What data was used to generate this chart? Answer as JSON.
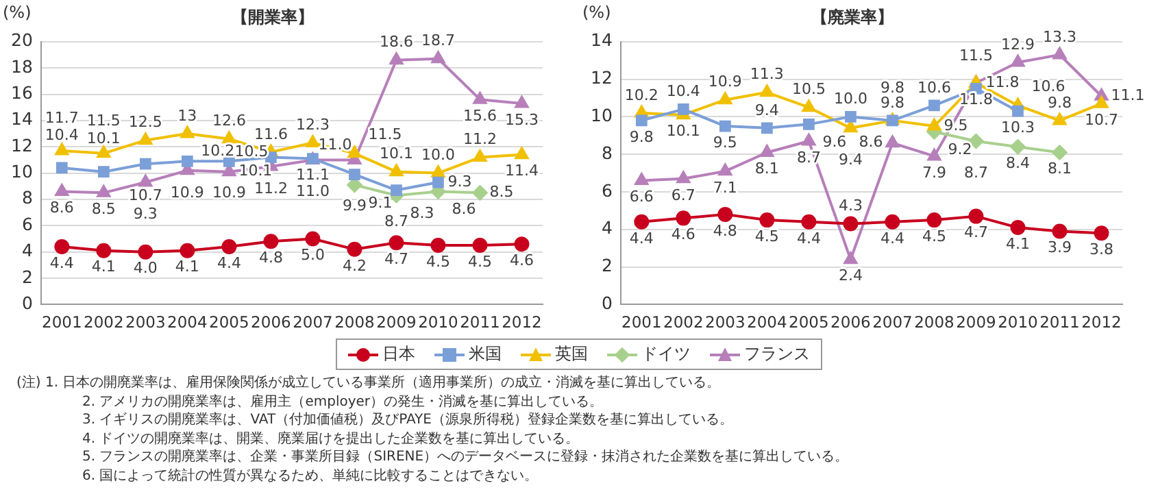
{
  "chart_data": [
    {
      "type": "line",
      "title": "【開業率】",
      "ylabel": "(%)",
      "categories": [
        "2001",
        "2002",
        "2003",
        "2004",
        "2005",
        "2006",
        "2007",
        "2008",
        "2009",
        "2010",
        "2011",
        "2012"
      ],
      "ylim": [
        0,
        20
      ],
      "yticks": [
        0,
        2,
        4,
        6,
        8,
        10,
        12,
        14,
        16,
        18,
        20
      ],
      "grid": "y",
      "legend": "bottom",
      "line_style": "solid",
      "series": [
        {
          "name": "日本",
          "color": "#c8001e",
          "marker": "circle",
          "values": [
            4.4,
            4.1,
            4.0,
            4.1,
            4.4,
            4.8,
            5.0,
            4.2,
            4.7,
            4.5,
            4.5,
            4.6
          ],
          "value_labels": [
            "4.4",
            "4.1",
            "4.0",
            "4.1",
            "4.4",
            "4.8",
            "5.0",
            "4.2",
            "4.7",
            "4.5",
            "4.5",
            "4.6"
          ]
        },
        {
          "name": "米国",
          "color": "#7b9fd8",
          "marker": "square",
          "values": [
            10.4,
            10.1,
            10.7,
            10.9,
            10.9,
            11.2,
            11.1,
            9.9,
            8.7,
            9.3,
            null,
            null
          ],
          "value_labels": [
            "10.4",
            "10.1",
            "10.7",
            "10.9",
            "10.9",
            "11.2",
            "11.1",
            "9.9",
            "8.7",
            "9.3",
            null,
            null
          ]
        },
        {
          "name": "英国",
          "color": "#f0c000",
          "marker": "triangle",
          "values": [
            11.7,
            11.5,
            12.5,
            13,
            12.6,
            11.6,
            12.3,
            11.5,
            10.1,
            10.0,
            11.2,
            11.4
          ],
          "value_labels": [
            "11.7",
            "11.5",
            "12.5",
            "13",
            "12.6",
            "11.6",
            "12.3",
            "11.5",
            "10.1",
            "10.0",
            "11.2",
            "11.4"
          ]
        },
        {
          "name": "ドイツ",
          "color": "#a8d08d",
          "marker": "diamond",
          "values": [
            null,
            null,
            null,
            null,
            null,
            null,
            null,
            9.1,
            8.3,
            8.6,
            8.5,
            null
          ],
          "value_labels": [
            null,
            null,
            null,
            null,
            null,
            null,
            null,
            "9.1",
            "8.3",
            "8.6",
            "8.5",
            null
          ]
        },
        {
          "name": "フランス",
          "color": "#b77fba",
          "marker": "triangle",
          "values": [
            8.6,
            8.5,
            9.3,
            10.2,
            10.1,
            10.5,
            11.0,
            11.0,
            18.6,
            18.7,
            15.6,
            15.3
          ],
          "value_labels": [
            "8.6",
            "8.5",
            "9.3",
            "10.2",
            "10.1",
            "10.5",
            "11.0",
            "11.0",
            "18.6",
            "18.7",
            "15.6",
            "15.3"
          ]
        }
      ],
      "annotations": [
        "(注) 1. 日本の開廃業率は、雇用保険関係が成立している事業所（適用事業所）の成立・消滅を基に算出している。",
        "2. アメリカの開廃業率は、雇用主（employer）の発生・消滅を基に算出している。",
        "3. イギリスの開廃業率は、VAT（付加価値税）及びPAYE（源泉所得税）登録企業数を基に算出している。",
        "4. ドイツの開廃業率は、開業、廃業届けを提出した企業数を基に算出している。",
        "5. フランスの開廃業率は、企業・事業所目録（SIRENE）へのデータベースに登録・抹消された企業数を基に算出している。",
        "6. 国によって統計の性質が異なるため、単純に比較することはできない。"
      ]
    },
    {
      "type": "line",
      "title": "【廃業率】",
      "ylabel": "(%)",
      "categories": [
        "2001",
        "2002",
        "2003",
        "2004",
        "2005",
        "2006",
        "2007",
        "2008",
        "2009",
        "2010",
        "2011",
        "2012"
      ],
      "ylim": [
        0,
        14
      ],
      "yticks": [
        0,
        2,
        4,
        6,
        8,
        10,
        12,
        14
      ],
      "grid": "y",
      "legend": "bottom",
      "line_style": "solid",
      "series": [
        {
          "name": "日本",
          "color": "#c8001e",
          "marker": "circle",
          "values": [
            4.4,
            4.6,
            4.8,
            4.5,
            4.4,
            4.3,
            4.4,
            4.5,
            4.7,
            4.1,
            3.9,
            3.8
          ],
          "value_labels": [
            "4.4",
            "4.6",
            "4.8",
            "4.5",
            "4.4",
            "4.3",
            "4.4",
            "4.5",
            "4.7",
            "4.1",
            "3.9",
            "3.8"
          ]
        },
        {
          "name": "米国",
          "color": "#7b9fd8",
          "marker": "square",
          "values": [
            9.8,
            10.4,
            9.5,
            9.4,
            9.6,
            10.0,
            9.8,
            10.6,
            11.5,
            10.3,
            null,
            null
          ],
          "value_labels": [
            "9.8",
            "10.4",
            "9.5",
            "9.4",
            "9.6",
            "10.0",
            "9.8",
            "10.6",
            "11.5",
            "10.3",
            null,
            null
          ]
        },
        {
          "name": "英国",
          "color": "#f0c000",
          "marker": "triangle",
          "values": [
            10.2,
            10.1,
            10.9,
            11.3,
            10.5,
            9.4,
            9.8,
            9.5,
            11.8,
            10.6,
            9.8,
            10.7
          ],
          "value_labels": [
            "10.2",
            "10.1",
            "10.9",
            "11.3",
            "10.5",
            "9.4",
            "9.8",
            "9.5",
            "11.8",
            "10.6",
            "9.8",
            "10.7"
          ]
        },
        {
          "name": "ドイツ",
          "color": "#a8d08d",
          "marker": "diamond",
          "values": [
            null,
            null,
            null,
            null,
            null,
            null,
            null,
            9.2,
            8.7,
            8.4,
            8.1,
            null
          ],
          "value_labels": [
            null,
            null,
            null,
            null,
            null,
            null,
            null,
            "9.2",
            "8.7",
            "8.4",
            "8.1",
            null
          ]
        },
        {
          "name": "フランス",
          "color": "#b77fba",
          "marker": "triangle",
          "values": [
            6.6,
            6.7,
            7.1,
            8.1,
            8.7,
            2.4,
            8.6,
            7.9,
            11.8,
            12.9,
            13.3,
            11.1
          ],
          "value_labels": [
            "6.6",
            "6.7",
            "7.1",
            "8.1",
            "8.7",
            "2.4",
            "8.6",
            "7.9",
            "11.8",
            "12.9",
            "13.3",
            "11.1"
          ]
        }
      ]
    }
  ]
}
